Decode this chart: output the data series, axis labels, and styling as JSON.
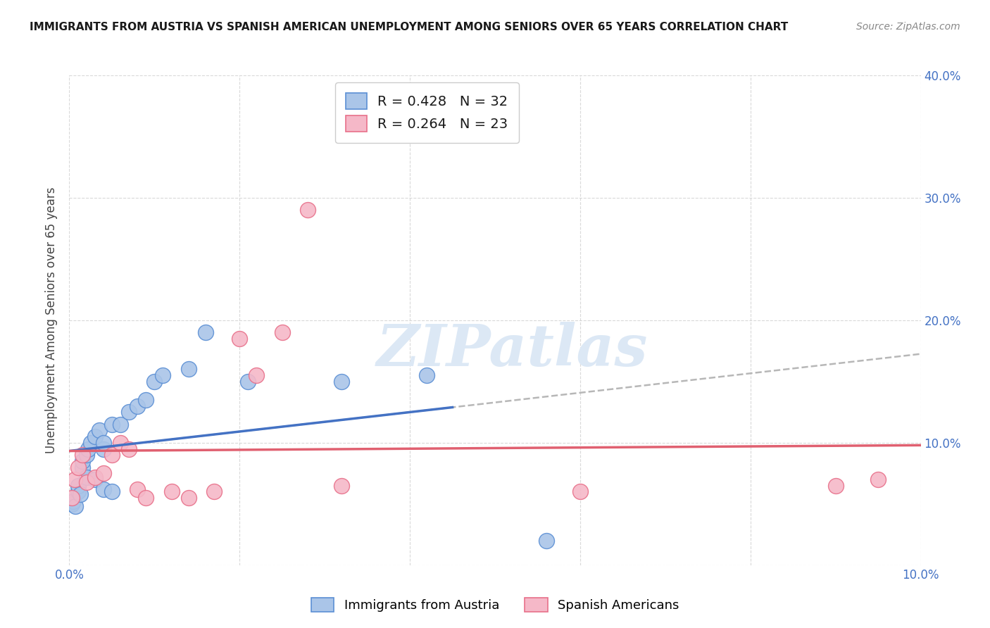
{
  "title": "IMMIGRANTS FROM AUSTRIA VS SPANISH AMERICAN UNEMPLOYMENT AMONG SENIORS OVER 65 YEARS CORRELATION CHART",
  "source": "Source: ZipAtlas.com",
  "ylabel": "Unemployment Among Seniors over 65 years",
  "xlim": [
    0.0,
    0.1
  ],
  "ylim": [
    0.0,
    0.4
  ],
  "xtick_positions": [
    0.0,
    0.02,
    0.04,
    0.06,
    0.08,
    0.1
  ],
  "xtick_labels": [
    "0.0%",
    "",
    "",
    "",
    "",
    "10.0%"
  ],
  "ytick_positions": [
    0.0,
    0.1,
    0.2,
    0.3,
    0.4
  ],
  "ytick_labels_left": [
    "",
    "",
    "",
    "",
    ""
  ],
  "ytick_labels_right": [
    "",
    "10.0%",
    "20.0%",
    "30.0%",
    "40.0%"
  ],
  "austria_color": "#aac5e8",
  "spanish_color": "#f5b8c8",
  "austria_edge_color": "#5b8fd4",
  "spanish_edge_color": "#e8708a",
  "austria_line_color": "#4472c4",
  "spanish_line_color": "#e06070",
  "grey_dash_color": "#b0b0b0",
  "legend_r_austria": "R = 0.428",
  "legend_n_austria": "N = 32",
  "legend_r_spanish": "R = 0.264",
  "legend_n_spanish": "N = 23",
  "legend_r_color": "#4472c4",
  "legend_n_color": "#e84040",
  "austria_x": [
    0.0003,
    0.0005,
    0.0007,
    0.001,
    0.001,
    0.0013,
    0.0015,
    0.0015,
    0.002,
    0.002,
    0.0022,
    0.0025,
    0.003,
    0.003,
    0.0035,
    0.004,
    0.004,
    0.004,
    0.005,
    0.005,
    0.006,
    0.007,
    0.008,
    0.009,
    0.01,
    0.011,
    0.014,
    0.016,
    0.021,
    0.032,
    0.042,
    0.056
  ],
  "austria_y": [
    0.05,
    0.052,
    0.048,
    0.06,
    0.065,
    0.058,
    0.08,
    0.085,
    0.09,
    0.072,
    0.095,
    0.1,
    0.105,
    0.07,
    0.11,
    0.095,
    0.1,
    0.062,
    0.115,
    0.06,
    0.115,
    0.125,
    0.13,
    0.135,
    0.15,
    0.155,
    0.16,
    0.19,
    0.15,
    0.15,
    0.155,
    0.02
  ],
  "spanish_x": [
    0.0003,
    0.0006,
    0.001,
    0.0015,
    0.002,
    0.003,
    0.004,
    0.005,
    0.006,
    0.007,
    0.008,
    0.009,
    0.012,
    0.014,
    0.017,
    0.02,
    0.022,
    0.025,
    0.028,
    0.032,
    0.06,
    0.09,
    0.095
  ],
  "spanish_y": [
    0.055,
    0.07,
    0.08,
    0.09,
    0.068,
    0.072,
    0.075,
    0.09,
    0.1,
    0.095,
    0.062,
    0.055,
    0.06,
    0.055,
    0.06,
    0.185,
    0.155,
    0.19,
    0.29,
    0.065,
    0.06,
    0.065,
    0.07
  ],
  "background_color": "#ffffff",
  "grid_color": "#d0d0d0",
  "watermark_text": "ZIPatlas",
  "watermark_color": "#dce8f5"
}
